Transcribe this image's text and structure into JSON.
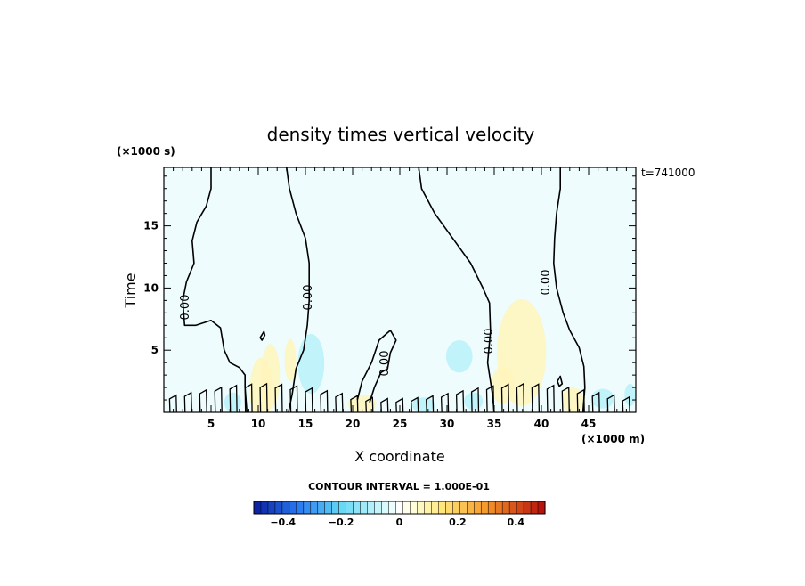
{
  "chart_data": {
    "type": "contour",
    "title": "density times vertical velocity",
    "xlabel": "X coordinate",
    "ylabel": "Time",
    "x_units": "(×1000 m)",
    "y_units": "(×1000 s)",
    "time_stamp": "t=741000",
    "xlim": [
      0,
      50
    ],
    "ylim": [
      0,
      19.7
    ],
    "x_ticks": [
      5,
      10,
      15,
      20,
      25,
      30,
      35,
      40,
      45
    ],
    "y_ticks": [
      5,
      10,
      15
    ],
    "contour_interval_text": "CONTOUR INTERVAL = 1.000E-01",
    "contour_label": "0.00",
    "zero_contours": [
      [
        [
          5.0,
          19.7
        ],
        [
          5.0,
          18.0
        ],
        [
          4.5,
          16.6
        ],
        [
          3.5,
          15.3
        ],
        [
          3.0,
          13.8
        ],
        [
          3.2,
          12.0
        ],
        [
          2.4,
          10.5
        ],
        [
          2.0,
          9.0
        ],
        [
          2.2,
          7.0
        ],
        [
          3.4,
          7.0
        ],
        [
          5.0,
          7.4
        ],
        [
          6.0,
          6.8
        ],
        [
          6.4,
          5.0
        ],
        [
          7.0,
          4.0
        ],
        [
          8.0,
          3.6
        ],
        [
          8.6,
          3.0
        ],
        [
          8.6,
          2.0
        ],
        [
          8.8,
          0.0
        ]
      ],
      [
        [
          13.0,
          19.7
        ],
        [
          13.3,
          18.0
        ],
        [
          14.0,
          16.0
        ],
        [
          15.0,
          14.0
        ],
        [
          15.4,
          12.0
        ],
        [
          15.4,
          10.0
        ],
        [
          15.4,
          9.0
        ],
        [
          15.2,
          7.0
        ],
        [
          14.8,
          5.0
        ],
        [
          14.0,
          3.5
        ],
        [
          13.6,
          1.5
        ],
        [
          13.2,
          0.0
        ]
      ],
      [
        [
          27.0,
          19.7
        ],
        [
          27.3,
          18.0
        ],
        [
          28.7,
          16.0
        ],
        [
          30.6,
          14.0
        ],
        [
          32.5,
          12.0
        ],
        [
          33.8,
          10.0
        ],
        [
          34.5,
          8.8
        ],
        [
          34.6,
          6.5
        ],
        [
          34.3,
          4.0
        ],
        [
          34.8,
          1.5
        ],
        [
          35.0,
          0.0
        ]
      ],
      [
        [
          42.0,
          19.7
        ],
        [
          42.0,
          18.0
        ],
        [
          41.6,
          16.0
        ],
        [
          41.4,
          14.0
        ],
        [
          41.3,
          12.0
        ],
        [
          41.6,
          10.0
        ],
        [
          42.3,
          8.0
        ],
        [
          43.0,
          6.6
        ],
        [
          44.0,
          5.2
        ],
        [
          44.5,
          3.7
        ],
        [
          44.6,
          2.0
        ],
        [
          44.4,
          0.0
        ]
      ],
      [
        [
          20.5,
          1.0
        ],
        [
          21.0,
          2.5
        ],
        [
          22.0,
          4.0
        ],
        [
          22.8,
          5.8
        ],
        [
          24.0,
          6.6
        ],
        [
          24.6,
          5.8
        ],
        [
          24.0,
          4.8
        ],
        [
          23.7,
          3.5
        ],
        [
          23.0,
          3.2
        ],
        [
          22.3,
          2.0
        ],
        [
          21.8,
          0.8
        ]
      ],
      [
        [
          10.2,
          6.0
        ],
        [
          10.6,
          6.5
        ],
        [
          10.7,
          6.2
        ],
        [
          10.4,
          5.8
        ],
        [
          10.2,
          6.0
        ]
      ],
      [
        [
          41.7,
          2.5
        ],
        [
          42.0,
          2.9
        ],
        [
          42.2,
          2.3
        ],
        [
          41.9,
          2.1
        ],
        [
          41.7,
          2.5
        ]
      ]
    ],
    "colorbar": {
      "levels": [
        -0.5,
        0.5
      ],
      "tick_values": [
        -0.4,
        -0.2,
        0,
        0.2,
        0.4
      ],
      "tick_labels": [
        "−0.4",
        "−0.2",
        "0",
        "0.2",
        "0.4"
      ],
      "low_color": "#0b1e9e",
      "mid_color": "#ffffff",
      "high_color": "#b40c0c"
    },
    "field_blobs": [
      {
        "x": 10.3,
        "y": 1.8,
        "rx": 1.2,
        "ry": 2.6,
        "value": 0.05
      },
      {
        "x": 11.3,
        "y": 2.9,
        "rx": 1.0,
        "ry": 2.6,
        "value": 0.04
      },
      {
        "x": 13.4,
        "y": 4.2,
        "rx": 0.6,
        "ry": 1.7,
        "value": 0.03
      },
      {
        "x": 15.6,
        "y": 3.9,
        "rx": 1.4,
        "ry": 2.4,
        "value": -0.05
      },
      {
        "x": 7.3,
        "y": 0.8,
        "rx": 0.9,
        "ry": 0.8,
        "value": -0.03
      },
      {
        "x": 31.3,
        "y": 4.5,
        "rx": 1.4,
        "ry": 1.3,
        "value": -0.05
      },
      {
        "x": 32.8,
        "y": 0.9,
        "rx": 1.0,
        "ry": 0.7,
        "value": -0.04
      },
      {
        "x": 37.9,
        "y": 4.8,
        "rx": 2.6,
        "ry": 4.3,
        "value": 0.04
      },
      {
        "x": 35.9,
        "y": 2.2,
        "rx": 1.2,
        "ry": 1.5,
        "value": 0.03
      },
      {
        "x": 43.3,
        "y": 1.0,
        "rx": 1.2,
        "ry": 1.0,
        "value": 0.05
      },
      {
        "x": 46.5,
        "y": 1.1,
        "rx": 1.2,
        "ry": 0.8,
        "value": -0.04
      },
      {
        "x": 49.4,
        "y": 1.4,
        "rx": 0.6,
        "ry": 0.9,
        "value": -0.03
      },
      {
        "x": 21.0,
        "y": 0.7,
        "rx": 1.5,
        "ry": 0.7,
        "value": 0.03
      },
      {
        "x": 27.5,
        "y": 0.6,
        "rx": 1.2,
        "ry": 0.6,
        "value": -0.02
      }
    ]
  }
}
